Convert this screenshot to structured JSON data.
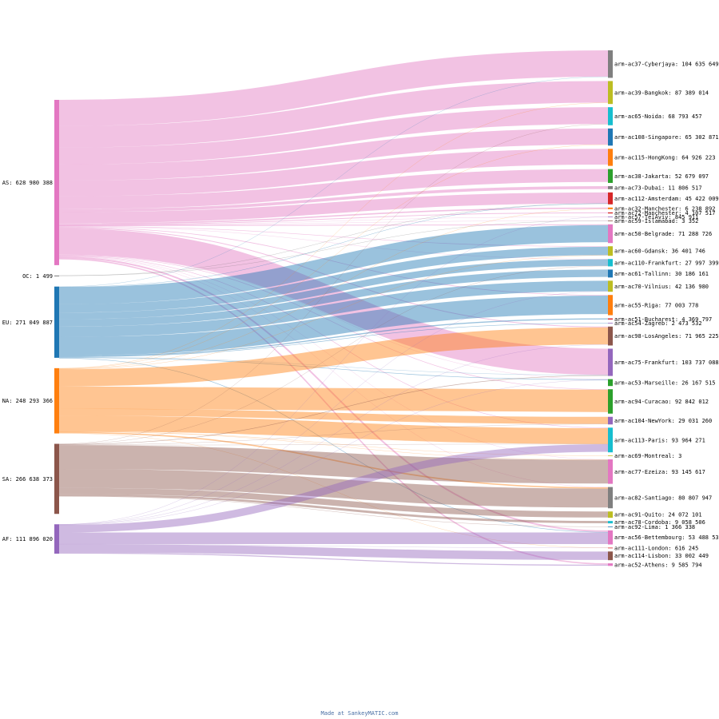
{
  "chart_data": {
    "type": "sankey",
    "sources": [
      {
        "id": "AS",
        "label": "AS: 628 980 388",
        "value": 628980388,
        "color": "#e377c2"
      },
      {
        "id": "OC",
        "label": "OC: 1 499",
        "value": 1499,
        "color": "#555555"
      },
      {
        "id": "EU",
        "label": "EU: 271 049 887",
        "value": 271049887,
        "color": "#1f77b4"
      },
      {
        "id": "NA",
        "label": "NA: 248 293 366",
        "value": 248293366,
        "color": "#ff7f0e"
      },
      {
        "id": "SA",
        "label": "SA: 266 638 373",
        "value": 266638373,
        "color": "#8c564b"
      },
      {
        "id": "AF",
        "label": "AF: 111 896 020",
        "value": 111896020,
        "color": "#9467bd"
      }
    ],
    "targets": [
      {
        "id": "ac37",
        "label": "arm-ac37-Cyberjaya: 104 635 649",
        "value": 104635649,
        "color": "#7f7f7f"
      },
      {
        "id": "ac39",
        "label": "arm-ac39-Bangkok: 87 389 014",
        "value": 87389014,
        "color": "#bcbd22"
      },
      {
        "id": "ac65",
        "label": "arm-ac65-Noida: 68 793 457",
        "value": 68793457,
        "color": "#17becf"
      },
      {
        "id": "ac108",
        "label": "arm-ac108-Singapore: 65 302 871",
        "value": 65302871,
        "color": "#1f77b4"
      },
      {
        "id": "ac115",
        "label": "arm-ac115-HongKong: 64 926 223",
        "value": 64926223,
        "color": "#ff7f0e"
      },
      {
        "id": "ac38",
        "label": "arm-ac38-Jakarta: 52 679 097",
        "value": 52679097,
        "color": "#2ca02c"
      },
      {
        "id": "ac73",
        "label": "arm-ac73-Dubai: 11 806 517",
        "value": 11806517,
        "color": "#7f7f7f"
      },
      {
        "id": "ac112",
        "label": "arm-ac112-Amsterdam: 45 422 009",
        "value": 45422009,
        "color": "#d62728"
      },
      {
        "id": "ac32",
        "label": "arm-ac32-Manchester: 6 238 892",
        "value": 6238892,
        "color": "#ff7f0e"
      },
      {
        "id": "ac72",
        "label": "arm-ac72-Manchester: 4 107 517",
        "value": 4107517,
        "color": "#d62728"
      },
      {
        "id": "ac57",
        "label": "arm-ac57-TelAviv: 845 911",
        "value": 845911,
        "color": "#9467bd"
      },
      {
        "id": "ac59",
        "label": "arm-ac59-Islamabad: 3 352",
        "value": 3352,
        "color": "#8c564b"
      },
      {
        "id": "ac50",
        "label": "arm-ac50-Belgrade: 71 288 726",
        "value": 71288726,
        "color": "#e377c2"
      },
      {
        "id": "ac60",
        "label": "arm-ac60-Gdansk: 36 401 746",
        "value": 36401746,
        "color": "#bcbd22"
      },
      {
        "id": "ac110",
        "label": "arm-ac110-Frankfurt: 27 997 399",
        "value": 27997399,
        "color": "#17becf"
      },
      {
        "id": "ac61",
        "label": "arm-ac61-Tallinn: 30 186 161",
        "value": 30186161,
        "color": "#1f77b4"
      },
      {
        "id": "ac70",
        "label": "arm-ac70-Vilnius: 42 136 980",
        "value": 42136980,
        "color": "#bcbd22"
      },
      {
        "id": "ac55",
        "label": "arm-ac55-Riga: 77 003 778",
        "value": 77003778,
        "color": "#ff7f0e"
      },
      {
        "id": "ac51",
        "label": "arm-ac51-Bucharest: 4 369 797",
        "value": 4369797,
        "color": "#d62728"
      },
      {
        "id": "ac54",
        "label": "arm-ac54-Zagreb: 2 473 532",
        "value": 2473532,
        "color": "#9467bd"
      },
      {
        "id": "ac98",
        "label": "arm-ac98-LosAngeles: 71 965 225",
        "value": 71965225,
        "color": "#8c564b"
      },
      {
        "id": "ac75",
        "label": "arm-ac75-Frankfurt: 103 737 088",
        "value": 103737088,
        "color": "#9467bd"
      },
      {
        "id": "ac53",
        "label": "arm-ac53-Marseille: 26 167 515",
        "value": 26167515,
        "color": "#2ca02c"
      },
      {
        "id": "ac94",
        "label": "arm-ac94-Curacao: 92 842 012",
        "value": 92842012,
        "color": "#2ca02c"
      },
      {
        "id": "ac104",
        "label": "arm-ac104-NewYork: 29 031 260",
        "value": 29031260,
        "color": "#9467bd"
      },
      {
        "id": "ac113",
        "label": "arm-ac113-Paris: 93 964 271",
        "value": 93964271,
        "color": "#17becf"
      },
      {
        "id": "ac69",
        "label": "arm-ac69-Montreal: 3",
        "value": 3,
        "color": "#bcbd22"
      },
      {
        "id": "ac77",
        "label": "arm-ac77-Ezeiza: 93 145 617",
        "value": 93145617,
        "color": "#e377c2"
      },
      {
        "id": "ac82",
        "label": "arm-ac82-Santiago: 80 807 947",
        "value": 80807947,
        "color": "#7f7f7f"
      },
      {
        "id": "ac91",
        "label": "arm-ac91-Quito: 24 072 101",
        "value": 24072101,
        "color": "#bcbd22"
      },
      {
        "id": "ac78",
        "label": "arm-ac78-Cordoba: 9 058 506",
        "value": 9058506,
        "color": "#17becf"
      },
      {
        "id": "ac92",
        "label": "arm-ac92-Lima: 1 366 338",
        "value": 1366338,
        "color": "#1f77b4"
      },
      {
        "id": "ac56",
        "label": "arm-ac56-Bettembourg: 53 488 534",
        "value": 53488534,
        "color": "#e377c2"
      },
      {
        "id": "ac111",
        "label": "arm-ac111-London: 616 245",
        "value": 616245,
        "color": "#d62728"
      },
      {
        "id": "ac114",
        "label": "arm-ac114-Lisbon: 33 002 449",
        "value": 33002449,
        "color": "#8c564b"
      },
      {
        "id": "ac52",
        "label": "arm-ac52-Athens: 9 585 794",
        "value": 9585794,
        "color": "#e377c2"
      }
    ],
    "flows": [
      [
        "AS",
        "ac37",
        100000000
      ],
      [
        "AS",
        "ac39",
        82000000
      ],
      [
        "AS",
        "ac65",
        64000000
      ],
      [
        "AS",
        "ac108",
        61000000
      ],
      [
        "AS",
        "ac115",
        60000000
      ],
      [
        "AS",
        "ac38",
        49000000
      ],
      [
        "AS",
        "ac73",
        11000000
      ],
      [
        "AS",
        "ac112",
        42000000
      ],
      [
        "AS",
        "ac32",
        5000000
      ],
      [
        "AS",
        "ac72",
        3000000
      ],
      [
        "AS",
        "ac57",
        300000
      ],
      [
        "AS",
        "ac59",
        3000
      ],
      [
        "AS",
        "ac50",
        3000000
      ],
      [
        "AS",
        "ac60",
        2000000
      ],
      [
        "AS",
        "ac110",
        1000000
      ],
      [
        "AS",
        "ac55",
        2500000
      ],
      [
        "AS",
        "ac98",
        3000000
      ],
      [
        "AS",
        "ac75",
        100000000
      ],
      [
        "AS",
        "ac53",
        1000000
      ],
      [
        "AS",
        "ac94",
        2000000
      ],
      [
        "AS",
        "ac113",
        2000000
      ],
      [
        "AS",
        "ac77",
        1000000
      ],
      [
        "AS",
        "ac82",
        1000000
      ],
      [
        "AS",
        "ac56",
        6000000
      ],
      [
        "AS",
        "ac52",
        5000000
      ],
      [
        "OC",
        "ac59",
        300
      ],
      [
        "OC",
        "ac112",
        1199
      ],
      [
        "EU",
        "ac50",
        65000000
      ],
      [
        "EU",
        "ac60",
        32000000
      ],
      [
        "EU",
        "ac110",
        25000000
      ],
      [
        "EU",
        "ac61",
        28000000
      ],
      [
        "EU",
        "ac70",
        40000000
      ],
      [
        "EU",
        "ac55",
        70000000
      ],
      [
        "EU",
        "ac51",
        4000000
      ],
      [
        "EU",
        "ac54",
        2000000
      ],
      [
        "EU",
        "ac37",
        1000000
      ],
      [
        "EU",
        "ac112",
        1500000
      ],
      [
        "EU",
        "ac53",
        2000000
      ],
      [
        "EU",
        "ac75",
        1000000
      ],
      [
        "EU",
        "ac56",
        2000000
      ],
      [
        "NA",
        "ac98",
        65000000
      ],
      [
        "NA",
        "ac94",
        85000000
      ],
      [
        "NA",
        "ac104",
        27000000
      ],
      [
        "NA",
        "ac113",
        60000000
      ],
      [
        "NA",
        "ac69",
        3
      ],
      [
        "NA",
        "ac82",
        5000000
      ],
      [
        "NA",
        "ac39",
        1000000
      ],
      [
        "NA",
        "ac108",
        1000000
      ],
      [
        "NA",
        "ac32",
        1000000
      ],
      [
        "NA",
        "ac60",
        1000000
      ],
      [
        "NA",
        "ac77",
        1000000
      ],
      [
        "NA",
        "ac111",
        300000
      ],
      [
        "SA",
        "ac77",
        90000000
      ],
      [
        "SA",
        "ac82",
        72000000
      ],
      [
        "SA",
        "ac91",
        23000000
      ],
      [
        "SA",
        "ac78",
        8500000
      ],
      [
        "SA",
        "ac92",
        1300000
      ],
      [
        "SA",
        "ac75",
        2000000
      ],
      [
        "SA",
        "ac104",
        1000000
      ],
      [
        "SA",
        "ac113",
        1000000
      ],
      [
        "SA",
        "ac65",
        1000000
      ],
      [
        "SA",
        "ac110",
        500000
      ],
      [
        "AF",
        "ac56",
        44000000
      ],
      [
        "AF",
        "ac114",
        32000000
      ],
      [
        "AF",
        "ac52",
        4000000
      ],
      [
        "AF",
        "ac111",
        300000
      ],
      [
        "AF",
        "ac113",
        29000000
      ],
      [
        "AF",
        "ac98",
        1000000
      ],
      [
        "AF",
        "ac53",
        500000
      ],
      [
        "AF",
        "ac57",
        400000
      ],
      [
        "AF",
        "ac70",
        400000
      ]
    ],
    "credit": "Made at SankeyMATIC.com"
  }
}
